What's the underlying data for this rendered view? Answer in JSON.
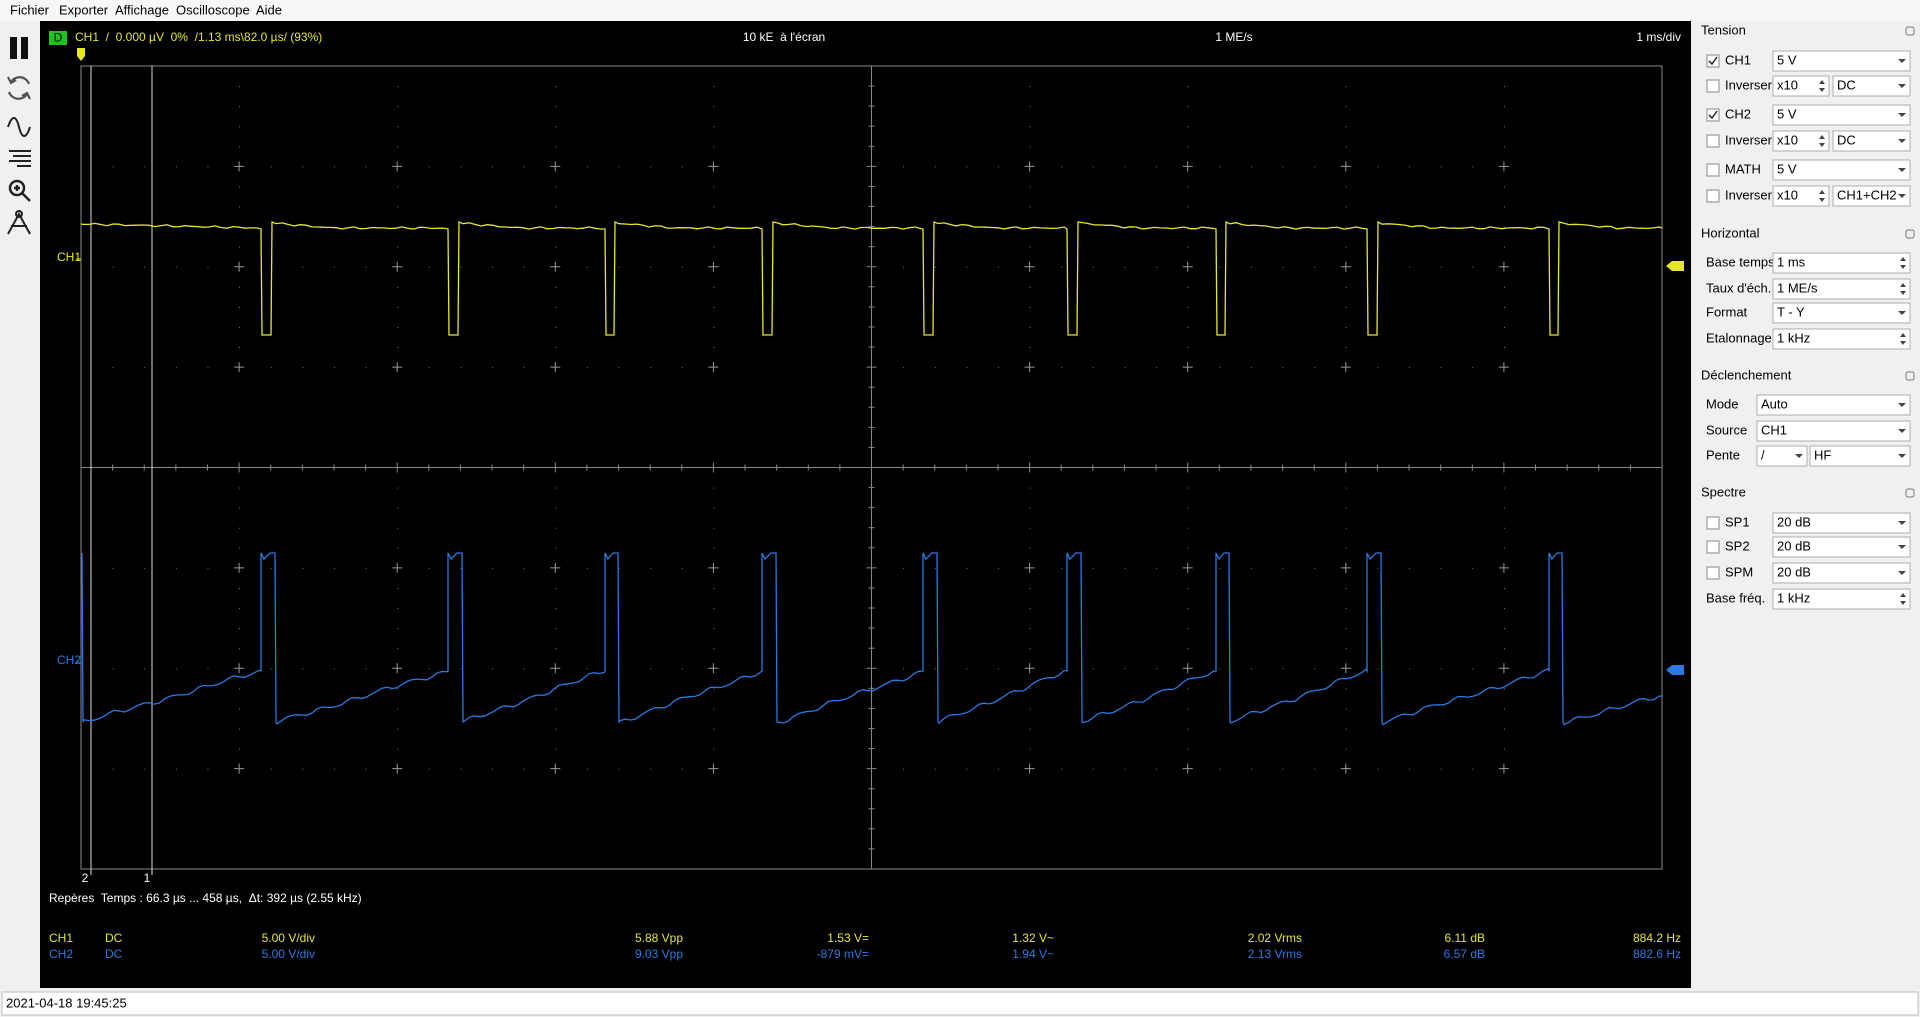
{
  "menu": [
    "Fichier",
    "Exporter",
    "Affichage",
    "Oscilloscope",
    "Aide"
  ],
  "scope": {
    "header": {
      "mode": "D",
      "trigger": "CH1  /  0.000 µV  0%  /1.13 ms\\82.0 µs/ (93%)",
      "samples": "10 kE  à l'écran",
      "rate": "1 ME/s",
      "timebase": "1 ms/div"
    },
    "channel_labels": [
      "CH1",
      "CH2"
    ],
    "cursor_labels": [
      "2",
      "1"
    ],
    "cursors_text": "Repères  Temps : 66.3 µs ... 458 µs,  Δt: 392 µs (2.55 kHz)",
    "measurements": [
      [
        "CH1",
        "DC",
        "5.00 V/div",
        "5.88 Vpp",
        "1.53 V=",
        "1.32 V~",
        "2.02 Vrms",
        "6.11 dB",
        "884.2 Hz"
      ],
      [
        "CH2",
        "DC",
        "5.00 V/div",
        "9.03 Vpp",
        "-879 mV=",
        "1.94 V~",
        "2.13 Vrms",
        "6.57 dB",
        "882.6 Hz"
      ]
    ]
  },
  "panel": [
    {
      "title": "Tension",
      "rows": [
        {
          "label": "CH1",
          "checked": true,
          "fields": [
            "5 V"
          ]
        },
        {
          "label": "Inverser",
          "checked": false,
          "fields": [
            "x10",
            "DC"
          ]
        },
        {
          "label": "CH2",
          "checked": true,
          "fields": [
            "5 V"
          ]
        },
        {
          "label": "Inverser",
          "checked": false,
          "fields": [
            "x10",
            "DC"
          ]
        },
        {
          "label": "MATH",
          "checked": false,
          "fields": [
            "5 V"
          ]
        },
        {
          "label": "Inverser",
          "checked": false,
          "fields": [
            "x10",
            "CH1+CH2"
          ]
        }
      ]
    },
    {
      "title": "Horizontal",
      "rows": [
        {
          "label": "Base temps",
          "fields": [
            "1 ms"
          ]
        },
        {
          "label": "Taux d'éch.",
          "fields": [
            "1 ME/s"
          ]
        },
        {
          "label": "Format",
          "fields": [
            "T - Y"
          ]
        },
        {
          "label": "Etalonnage",
          "fields": [
            "1 kHz"
          ]
        }
      ]
    },
    {
      "title": "Déclenchement",
      "rows": [
        {
          "label": "Mode",
          "fields": [
            "Auto"
          ]
        },
        {
          "label": "Source",
          "fields": [
            "CH1"
          ]
        },
        {
          "label": "Pente",
          "fields": [
            "/",
            "HF"
          ]
        }
      ]
    },
    {
      "title": "Spectre",
      "rows": [
        {
          "label": "SP1",
          "checked": false,
          "fields": [
            "20 dB"
          ]
        },
        {
          "label": "SP2",
          "checked": false,
          "fields": [
            "20 dB"
          ]
        },
        {
          "label": "SPM",
          "checked": false,
          "fields": [
            "20 dB"
          ]
        },
        {
          "label": "Base fréq.",
          "fields": [
            "1 kHz"
          ]
        }
      ]
    }
  ],
  "status": "2021-04-18 19:45:25"
}
